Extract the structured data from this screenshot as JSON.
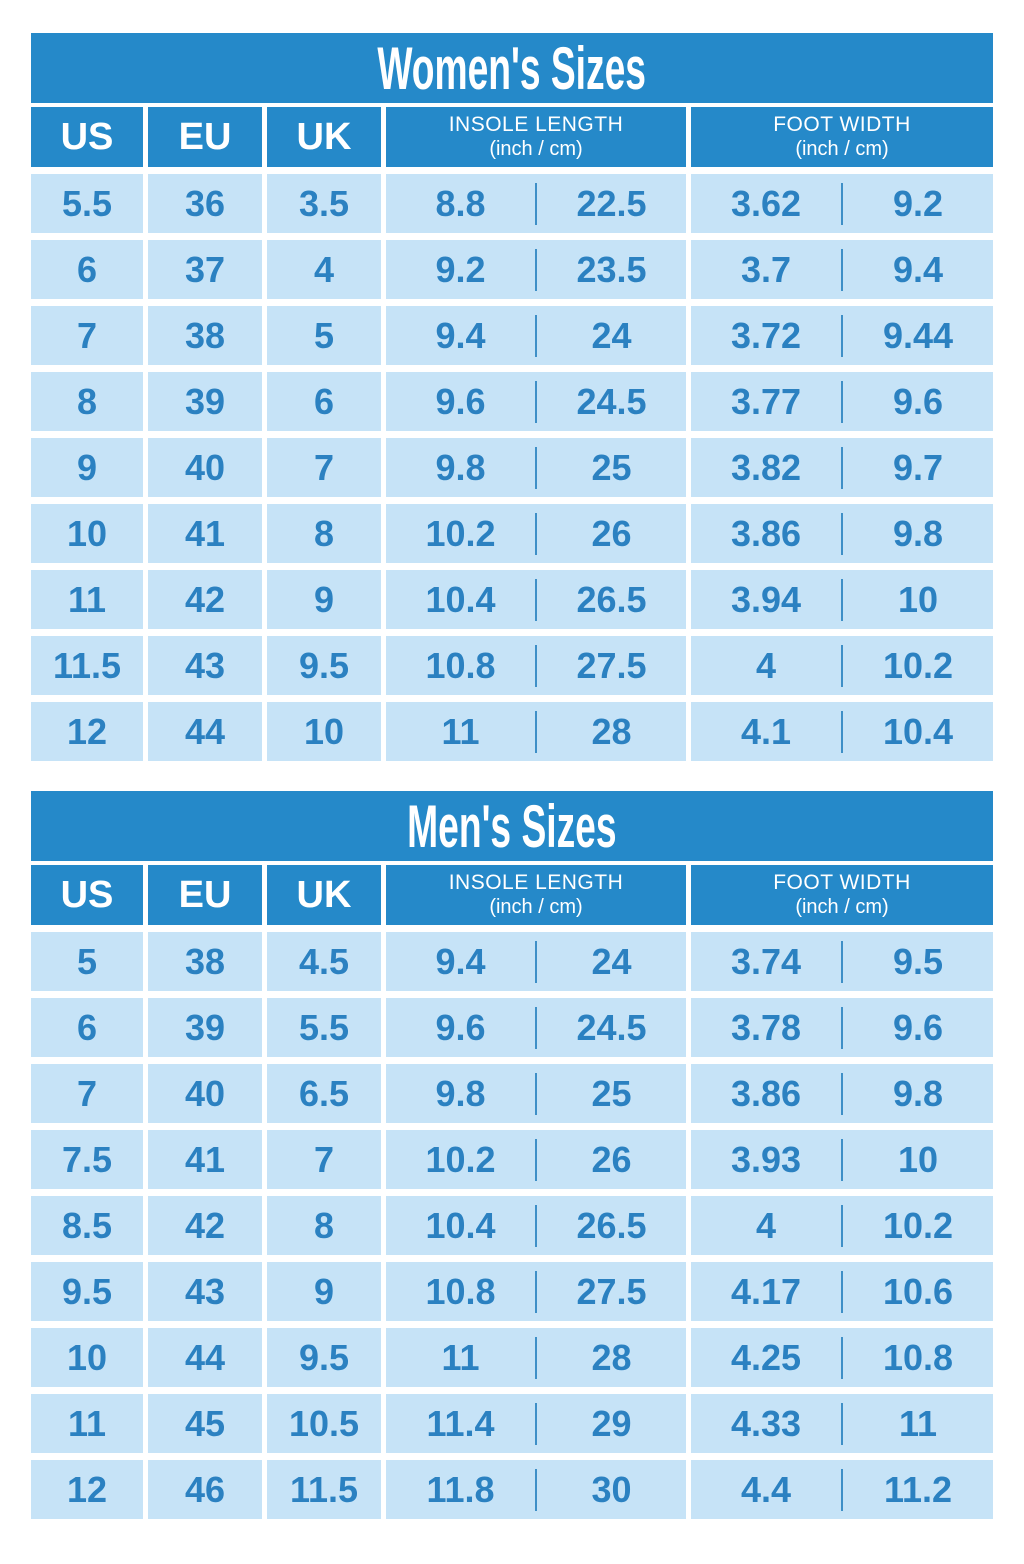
{
  "colors": {
    "header_blue": "#2589c9",
    "cell_blue": "#c6e3f7",
    "value_blue": "#2b81c1",
    "divider_blue": "#3e8fc7",
    "header_text": "#ffffff"
  },
  "chart_data": [
    {
      "type": "table",
      "title": "Women's Sizes",
      "column_headers": {
        "us": "US",
        "eu": "EU",
        "uk": "UK",
        "insole_line1": "INSOLE LENGTH",
        "insole_line2": "(inch / cm)",
        "foot_line1": "FOOT WIDTH",
        "foot_line2": "(inch / cm)"
      },
      "columns": [
        "US",
        "EU",
        "UK",
        "INSOLE LENGTH inch",
        "INSOLE LENGTH cm",
        "FOOT WIDTH inch",
        "FOOT WIDTH cm"
      ],
      "rows": [
        [
          "5.5",
          "36",
          "3.5",
          "8.8",
          "22.5",
          "3.62",
          "9.2"
        ],
        [
          "6",
          "37",
          "4",
          "9.2",
          "23.5",
          "3.7",
          "9.4"
        ],
        [
          "7",
          "38",
          "5",
          "9.4",
          "24",
          "3.72",
          "9.44"
        ],
        [
          "8",
          "39",
          "6",
          "9.6",
          "24.5",
          "3.77",
          "9.6"
        ],
        [
          "9",
          "40",
          "7",
          "9.8",
          "25",
          "3.82",
          "9.7"
        ],
        [
          "10",
          "41",
          "8",
          "10.2",
          "26",
          "3.86",
          "9.8"
        ],
        [
          "11",
          "42",
          "9",
          "10.4",
          "26.5",
          "3.94",
          "10"
        ],
        [
          "11.5",
          "43",
          "9.5",
          "10.8",
          "27.5",
          "4",
          "10.2"
        ],
        [
          "12",
          "44",
          "10",
          "11",
          "28",
          "4.1",
          "10.4"
        ]
      ]
    },
    {
      "type": "table",
      "title": "Men's Sizes",
      "column_headers": {
        "us": "US",
        "eu": "EU",
        "uk": "UK",
        "insole_line1": "INSOLE LENGTH",
        "insole_line2": "(inch / cm)",
        "foot_line1": "FOOT WIDTH",
        "foot_line2": "(inch / cm)"
      },
      "columns": [
        "US",
        "EU",
        "UK",
        "INSOLE LENGTH inch",
        "INSOLE LENGTH cm",
        "FOOT WIDTH inch",
        "FOOT WIDTH cm"
      ],
      "rows": [
        [
          "5",
          "38",
          "4.5",
          "9.4",
          "24",
          "3.74",
          "9.5"
        ],
        [
          "6",
          "39",
          "5.5",
          "9.6",
          "24.5",
          "3.78",
          "9.6"
        ],
        [
          "7",
          "40",
          "6.5",
          "9.8",
          "25",
          "3.86",
          "9.8"
        ],
        [
          "7.5",
          "41",
          "7",
          "10.2",
          "26",
          "3.93",
          "10"
        ],
        [
          "8.5",
          "42",
          "8",
          "10.4",
          "26.5",
          "4",
          "10.2"
        ],
        [
          "9.5",
          "43",
          "9",
          "10.8",
          "27.5",
          "4.17",
          "10.6"
        ],
        [
          "10",
          "44",
          "9.5",
          "11",
          "28",
          "4.25",
          "10.8"
        ],
        [
          "11",
          "45",
          "10.5",
          "11.4",
          "29",
          "4.33",
          "11"
        ],
        [
          "12",
          "46",
          "11.5",
          "11.8",
          "30",
          "4.4",
          "11.2"
        ]
      ]
    }
  ]
}
